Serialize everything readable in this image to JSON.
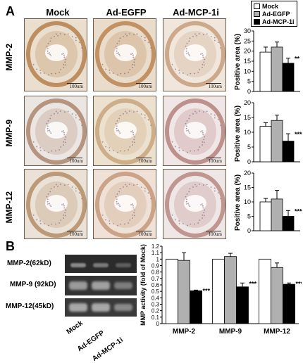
{
  "panels": {
    "a": "A",
    "b": "B"
  },
  "columns": [
    "Mock",
    "Ad-EGFP",
    "Ad-MCP-1i"
  ],
  "rows": [
    "MMP-2",
    "MMP-9",
    "MMP-12"
  ],
  "scale_label": "100um",
  "legend": [
    {
      "name": "Mock",
      "color": "#ffffff"
    },
    {
      "name": "Ad-EGFP",
      "color": "#b0b0b0"
    },
    {
      "name": "Ad-MCP-1i",
      "color": "#000000"
    }
  ],
  "blot": {
    "bands": [
      "MMP-2(62kD)",
      "MMP-9 (92kD)",
      "MMP-12(45kD)"
    ],
    "lanes": [
      "Mock",
      "Ad-EGFP",
      "Ad-MCP-1i"
    ]
  },
  "chart_data": [
    {
      "type": "bar",
      "ylabel": "Positive area (%)",
      "ylim": [
        0,
        30
      ],
      "yticks": [
        0,
        5,
        10,
        15,
        20,
        25,
        30
      ],
      "categories": [
        "MMP-2"
      ],
      "series": [
        {
          "name": "Mock",
          "values": [
            19.5
          ],
          "err": [
            2.5
          ]
        },
        {
          "name": "Ad-EGFP",
          "values": [
            22
          ],
          "err": [
            2.5
          ]
        },
        {
          "name": "Ad-MCP-1i",
          "values": [
            14
          ],
          "err": [
            2.5
          ]
        }
      ],
      "annotations": [
        "**"
      ]
    },
    {
      "type": "bar",
      "ylabel": "Positive area (%)",
      "ylim": [
        0,
        20
      ],
      "yticks": [
        0,
        5,
        10,
        15,
        20
      ],
      "categories": [
        "MMP-9"
      ],
      "series": [
        {
          "name": "Mock",
          "values": [
            12
          ],
          "err": [
            1.2
          ]
        },
        {
          "name": "Ad-EGFP",
          "values": [
            14
          ],
          "err": [
            1.8
          ]
        },
        {
          "name": "Ad-MCP-1i",
          "values": [
            7
          ],
          "err": [
            2.5
          ]
        }
      ],
      "annotations": [
        "***"
      ]
    },
    {
      "type": "bar",
      "ylabel": "Positive area (%)",
      "ylim": [
        0,
        20
      ],
      "yticks": [
        0,
        5,
        10,
        15,
        20
      ],
      "categories": [
        "MMP-12"
      ],
      "series": [
        {
          "name": "Mock",
          "values": [
            10
          ],
          "err": [
            1.2
          ]
        },
        {
          "name": "Ad-EGFP",
          "values": [
            11
          ],
          "err": [
            3
          ]
        },
        {
          "name": "Ad-MCP-1i",
          "values": [
            5
          ],
          "err": [
            2
          ]
        }
      ],
      "annotations": [
        "***"
      ]
    },
    {
      "type": "bar",
      "ylabel": "MMP activity (fold of Mock)",
      "ylim": [
        0,
        1.2
      ],
      "yticks": [
        "0",
        "0.1",
        "0.2",
        "0.3",
        "0.4",
        "0.5",
        "0.6",
        "0.7",
        "0.8",
        "0.9",
        "1",
        "1.1",
        "1.2"
      ],
      "categories": [
        "MMP-2",
        "MMP-9",
        "MMP-12"
      ],
      "series": [
        {
          "name": "Mock",
          "values": [
            1,
            1,
            1
          ],
          "err": [
            0,
            0,
            0
          ]
        },
        {
          "name": "Ad-EGFP",
          "values": [
            0.98,
            1.04,
            0.87
          ],
          "err": [
            0.12,
            0.05,
            0.07
          ]
        },
        {
          "name": "Ad-MCP-1i",
          "values": [
            0.51,
            0.57,
            0.61
          ],
          "err": [
            0.01,
            0.06,
            0.02
          ]
        }
      ],
      "annotations": [
        "***",
        "***",
        "***"
      ]
    }
  ]
}
